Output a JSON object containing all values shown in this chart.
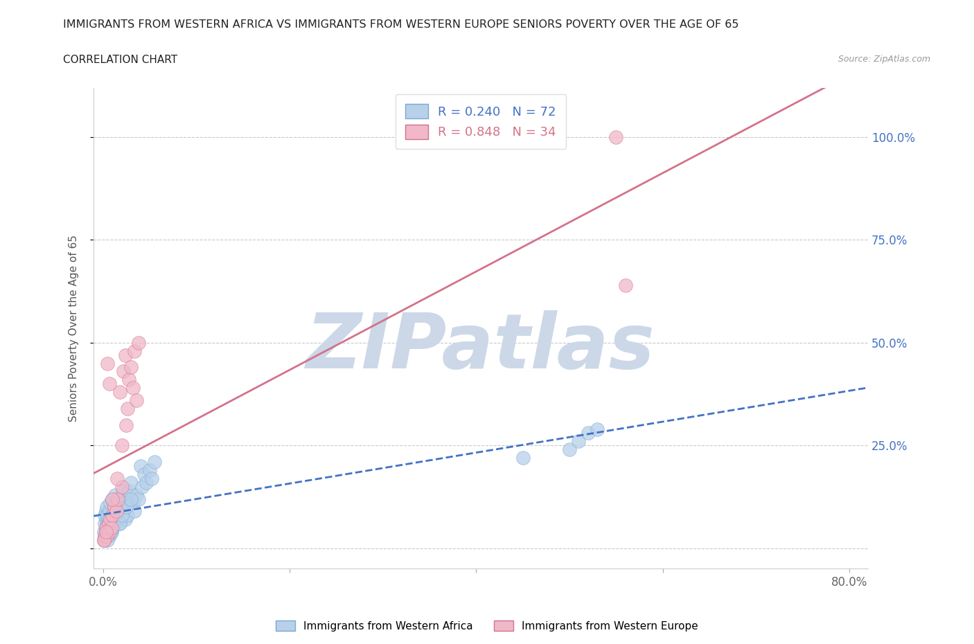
{
  "title": "IMMIGRANTS FROM WESTERN AFRICA VS IMMIGRANTS FROM WESTERN EUROPE SENIORS POVERTY OVER THE AGE OF 65",
  "subtitle": "CORRELATION CHART",
  "source": "Source: ZipAtlas.com",
  "ylabel": "Seniors Poverty Over the Age of 65",
  "xlim": [
    -0.01,
    0.82
  ],
  "ylim": [
    -0.05,
    1.12
  ],
  "watermark": "ZIPatlas",
  "blue_color": "#4472c4",
  "pink_color": "#d4728a",
  "grid_color": "#cccccc",
  "background_color": "#ffffff",
  "title_color": "#222222",
  "watermark_color": "#ccd8e8",
  "series": [
    {
      "label": "Immigrants from Western Africa",
      "color": "#b8d0ea",
      "edge_color": "#7aaad0",
      "R": 0.24,
      "N": 72,
      "trend_color": "#4472c4",
      "trend_style": "--",
      "x": [
        0.001,
        0.002,
        0.002,
        0.003,
        0.003,
        0.004,
        0.004,
        0.005,
        0.005,
        0.006,
        0.006,
        0.007,
        0.007,
        0.008,
        0.008,
        0.009,
        0.01,
        0.01,
        0.011,
        0.012,
        0.012,
        0.013,
        0.014,
        0.015,
        0.015,
        0.016,
        0.017,
        0.018,
        0.019,
        0.02,
        0.021,
        0.022,
        0.023,
        0.024,
        0.025,
        0.026,
        0.027,
        0.028,
        0.03,
        0.032,
        0.034,
        0.036,
        0.038,
        0.04,
        0.042,
        0.044,
        0.046,
        0.05,
        0.052,
        0.055,
        0.001,
        0.002,
        0.003,
        0.004,
        0.005,
        0.006,
        0.007,
        0.008,
        0.009,
        0.01,
        0.012,
        0.015,
        0.018,
        0.02,
        0.025,
        0.03,
        0.45,
        0.5,
        0.51,
        0.52,
        0.53,
        0.005
      ],
      "y": [
        0.04,
        0.06,
        0.08,
        0.05,
        0.09,
        0.07,
        0.1,
        0.06,
        0.08,
        0.05,
        0.07,
        0.09,
        0.03,
        0.11,
        0.05,
        0.04,
        0.08,
        0.12,
        0.07,
        0.06,
        0.1,
        0.13,
        0.08,
        0.07,
        0.11,
        0.09,
        0.06,
        0.1,
        0.08,
        0.12,
        0.14,
        0.09,
        0.11,
        0.07,
        0.1,
        0.08,
        0.12,
        0.14,
        0.16,
        0.11,
        0.09,
        0.13,
        0.12,
        0.2,
        0.15,
        0.18,
        0.16,
        0.19,
        0.17,
        0.21,
        0.02,
        0.03,
        0.04,
        0.05,
        0.03,
        0.04,
        0.05,
        0.06,
        0.04,
        0.05,
        0.07,
        0.09,
        0.06,
        0.08,
        0.1,
        0.12,
        0.22,
        0.24,
        0.26,
        0.28,
        0.29,
        0.02
      ]
    },
    {
      "label": "Immigrants from Western Europe",
      "color": "#f0b8c8",
      "edge_color": "#d47090",
      "R": 0.848,
      "N": 34,
      "trend_color": "#d4728a",
      "trend_style": "-",
      "x": [
        0.001,
        0.002,
        0.003,
        0.004,
        0.005,
        0.006,
        0.007,
        0.008,
        0.009,
        0.01,
        0.012,
        0.014,
        0.016,
        0.018,
        0.02,
        0.022,
        0.024,
        0.026,
        0.028,
        0.03,
        0.032,
        0.034,
        0.036,
        0.038,
        0.001,
        0.003,
        0.005,
        0.007,
        0.01,
        0.015,
        0.02,
        0.025,
        0.55,
        0.56
      ],
      "y": [
        0.02,
        0.03,
        0.05,
        0.03,
        0.04,
        0.06,
        0.04,
        0.07,
        0.05,
        0.08,
        0.1,
        0.09,
        0.12,
        0.38,
        0.15,
        0.43,
        0.47,
        0.34,
        0.41,
        0.44,
        0.39,
        0.48,
        0.36,
        0.5,
        0.02,
        0.04,
        0.45,
        0.4,
        0.12,
        0.17,
        0.25,
        0.3,
        1.0,
        0.64
      ]
    }
  ]
}
